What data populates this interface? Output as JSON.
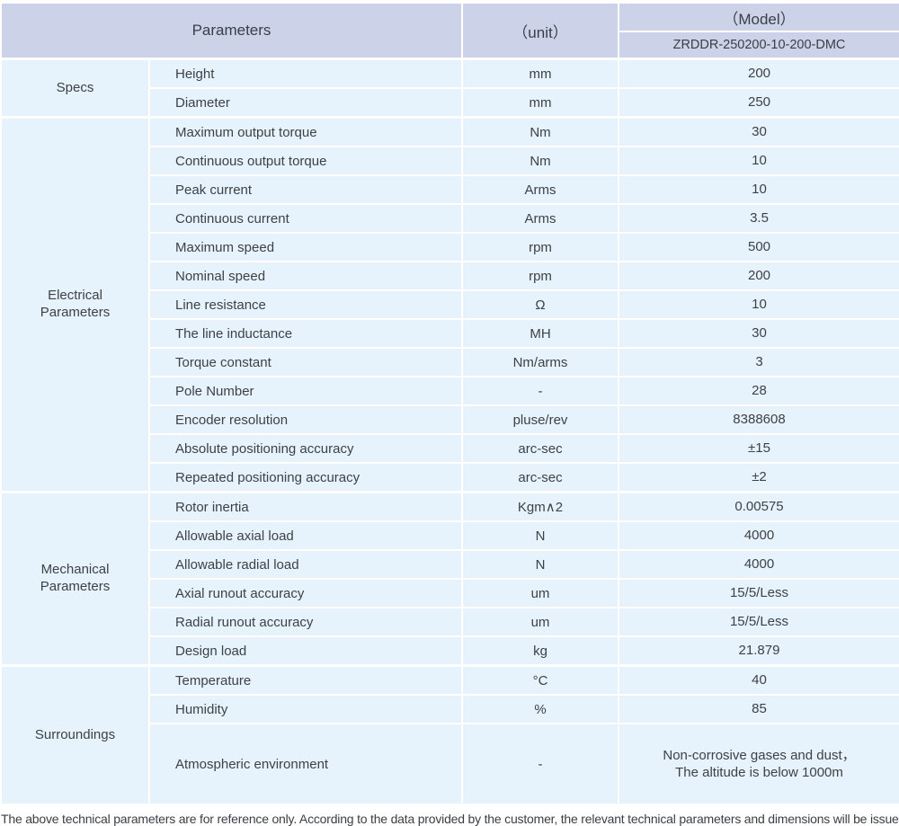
{
  "colors": {
    "header_bg": "#ccd3e9",
    "row_bg": "#e6f3fc",
    "border": "#ffffff",
    "text": "#3e4145"
  },
  "table": {
    "header": {
      "parameters_label": "Parameters",
      "unit_label": "（unit）",
      "model_label": "（Model）",
      "model_value": "ZRDDR-250200-10-200-DMC"
    },
    "sections": [
      {
        "label": "Specs",
        "rows": [
          {
            "parameter": "Height",
            "unit": "mm",
            "value": "200"
          },
          {
            "parameter": "Diameter",
            "unit": "mm",
            "value": "250"
          }
        ]
      },
      {
        "label": "Electrical\nParameters",
        "rows": [
          {
            "parameter": "Maximum output torque",
            "unit": "Nm",
            "value": "30"
          },
          {
            "parameter": "Continuous output torque",
            "unit": "Nm",
            "value": "10"
          },
          {
            "parameter": "Peak current",
            "unit": "Arms",
            "value": "10"
          },
          {
            "parameter": "Continuous current",
            "unit": "Arms",
            "value": "3.5"
          },
          {
            "parameter": "Maximum speed",
            "unit": "rpm",
            "value": "500"
          },
          {
            "parameter": "Nominal speed",
            "unit": "rpm",
            "value": "200"
          },
          {
            "parameter": "Line resistance",
            "unit": "Ω",
            "value": "10"
          },
          {
            "parameter": "The line inductance",
            "unit": "MH",
            "value": "30"
          },
          {
            "parameter": "Torque constant",
            "unit": "Nm/arms",
            "value": "3"
          },
          {
            "parameter": "Pole Number",
            "unit": "-",
            "value": "28"
          },
          {
            "parameter": "Encoder resolution",
            "unit": "pluse/rev",
            "value": "8388608"
          },
          {
            "parameter": "Absolute positioning accuracy",
            "unit": "arc-sec",
            "value": "±15"
          },
          {
            "parameter": "Repeated positioning accuracy",
            "unit": "arc-sec",
            "value": "±2"
          }
        ]
      },
      {
        "label": "Mechanical\nParameters",
        "rows": [
          {
            "parameter": "Rotor inertia",
            "unit": "Kgm∧2",
            "value": "0.00575"
          },
          {
            "parameter": "Allowable axial load",
            "unit": "N",
            "value": "4000"
          },
          {
            "parameter": "Allowable radial load",
            "unit": "N",
            "value": "4000"
          },
          {
            "parameter": "Axial runout accuracy",
            "unit": "um",
            "value": "15/5/Less"
          },
          {
            "parameter": "Radial runout accuracy",
            "unit": "um",
            "value": "15/5/Less"
          },
          {
            "parameter": "Design load",
            "unit": "kg",
            "value": "21.879"
          }
        ]
      },
      {
        "label": "Surroundings",
        "rows": [
          {
            "parameter": "Temperature",
            "unit": "°C",
            "value": "40"
          },
          {
            "parameter": "Humidity",
            "unit": "%",
            "value": "85"
          },
          {
            "parameter": "Atmospheric environment",
            "unit": "-",
            "value": "Non-corrosive gases and dust，\nThe altitude is below 1000m",
            "tall": true
          }
        ]
      }
    ]
  },
  "footer": {
    "note": "The above technical parameters are for reference only. According to the data provided by the customer, the relevant technical parameters and dimensions will be issued."
  }
}
